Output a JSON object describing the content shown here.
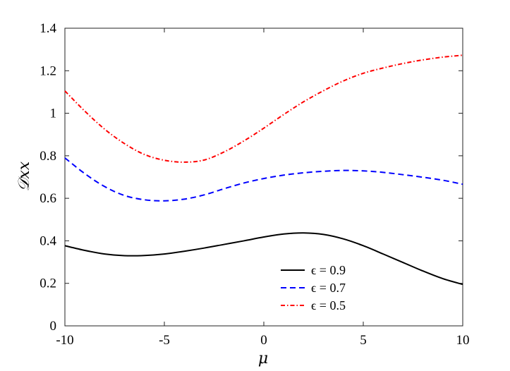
{
  "chart_data": {
    "type": "line",
    "xlabel": "μ",
    "ylabel": "𝒟xx",
    "xlim": [
      -10,
      10
    ],
    "ylim": [
      0,
      1.4
    ],
    "grid": false,
    "legend_position": "bottom-center",
    "x_ticks": [
      -10,
      -5,
      0,
      5,
      10
    ],
    "x_tick_labels": [
      "-10",
      "-5",
      "0",
      "5",
      "10"
    ],
    "y_ticks": [
      0,
      0.2,
      0.4,
      0.6,
      0.8,
      1.0,
      1.2,
      1.4
    ],
    "y_tick_labels": [
      "0",
      "0.2",
      "0.4",
      "0.6",
      "0.8",
      "1",
      "1.2",
      "1.4"
    ],
    "x": [
      -10,
      -9,
      -8,
      -7,
      -6,
      -5,
      -4,
      -3,
      -2,
      -1,
      0,
      1,
      2,
      3,
      4,
      5,
      6,
      7,
      8,
      9,
      10
    ],
    "series": [
      {
        "name": "ϵ = 0.9",
        "color": "#000000",
        "dash": "solid",
        "values": [
          0.377,
          0.355,
          0.338,
          0.33,
          0.331,
          0.338,
          0.351,
          0.366,
          0.383,
          0.4,
          0.418,
          0.432,
          0.437,
          0.43,
          0.409,
          0.377,
          0.338,
          0.298,
          0.258,
          0.222,
          0.195
        ]
      },
      {
        "name": "ϵ = 0.7",
        "color": "#0000ff",
        "dash": "dashed",
        "values": [
          0.79,
          0.716,
          0.655,
          0.613,
          0.593,
          0.588,
          0.596,
          0.616,
          0.645,
          0.672,
          0.693,
          0.709,
          0.72,
          0.727,
          0.731,
          0.729,
          0.722,
          0.711,
          0.699,
          0.685,
          0.666
        ]
      },
      {
        "name": "ϵ = 0.5",
        "color": "#ff0000",
        "dash": "dashdot",
        "values": [
          1.105,
          1.01,
          0.925,
          0.857,
          0.806,
          0.779,
          0.77,
          0.78,
          0.818,
          0.87,
          0.93,
          0.994,
          1.054,
          1.106,
          1.152,
          1.188,
          1.213,
          1.234,
          1.251,
          1.264,
          1.273
        ]
      }
    ]
  }
}
